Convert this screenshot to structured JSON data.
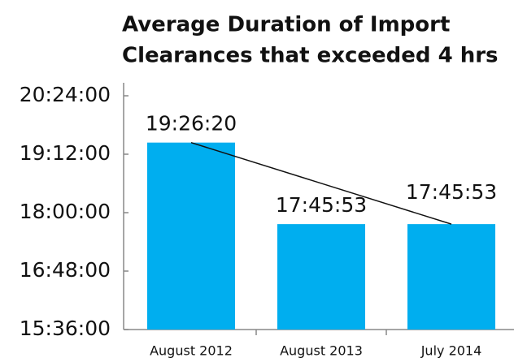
{
  "chart_data": {
    "type": "bar",
    "title": [
      "Average Duration of Import",
      "Clearances that exceeded 4 hrs"
    ],
    "categories": [
      "August 2012",
      "August 2013",
      "July 2014"
    ],
    "values": [
      19.438889,
      17.764722,
      17.764722
    ],
    "value_labels": [
      "19:26:20",
      "17:45:53",
      "17:45:53"
    ],
    "color": "#00aeef",
    "ylim": [
      15.6,
      20.4
    ],
    "yticks": [
      {
        "value": 15.6,
        "label": "15:36:00"
      },
      {
        "value": 16.8,
        "label": "16:48:00"
      },
      {
        "value": 18,
        "label": "18:00:00"
      },
      {
        "value": 19.2,
        "label": "19:12:00"
      },
      {
        "value": 20.4,
        "label": "20:24:00"
      }
    ],
    "trendline": true
  }
}
